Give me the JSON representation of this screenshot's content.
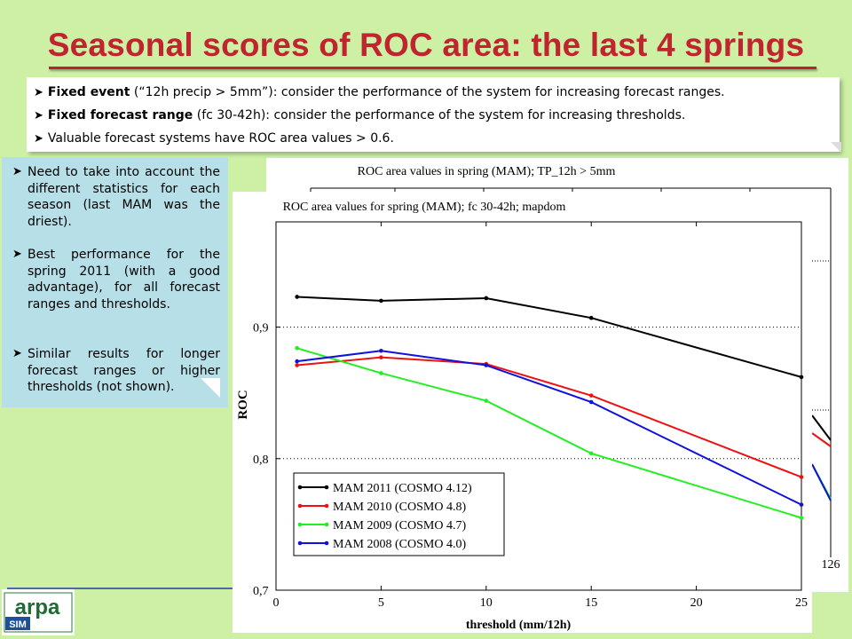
{
  "slide": {
    "title": "Seasonal scores of ROC area: the last 4 springs",
    "bullets_top": [
      {
        "bold": "Fixed event",
        "text": " (“12h precip > 5mm”): consider the performance of the system for increasing forecast ranges."
      },
      {
        "bold": "Fixed forecast range",
        "text": " (fc 30-42h): consider the performance of the system for increasing thresholds."
      },
      {
        "bold": "",
        "text": "Valuable forecast systems have ROC area values > 0.6."
      }
    ],
    "bullets_left": [
      "Need to take into account the different statistics for each season (last MAM was the driest).",
      "Best performance for the spring 2011 (with a good advantage), for all forecast ranges and thresholds.",
      "Similar results for longer forecast ranges or higher thresholds (not shown)."
    ],
    "logo_text": "arpa",
    "logo_subtext": "SIM"
  },
  "colors": {
    "background": "#cdf0a4",
    "title": "#c0252f",
    "left_box": "#b6dfe8",
    "series": [
      "#000000",
      "#ee1111",
      "#22ee22",
      "#1111dd"
    ]
  },
  "chart_data": [
    {
      "type": "line",
      "title": "ROC area values for spring (MAM); fc 30-42h; mapdom",
      "xlabel": "threshold (mm/12h)",
      "ylabel": "ROC",
      "xlim": [
        0,
        25
      ],
      "ylim": [
        0.7,
        0.98
      ],
      "x_ticks": [
        "0",
        "5",
        "10",
        "15",
        "20",
        "25"
      ],
      "y_ticks": [
        "0,7",
        "0,8",
        "0,9"
      ],
      "y_tick_values": [
        0.7,
        0.8,
        0.9
      ],
      "grid": "dotted horizontal at y ticks",
      "legend_position": "bottom-left",
      "x": [
        1,
        5,
        10,
        15,
        25
      ],
      "series": [
        {
          "name": "MAM 2011 (COSMO 4.12)",
          "values": [
            0.923,
            0.92,
            0.922,
            0.907,
            0.862
          ]
        },
        {
          "name": "MAM 2010 (COSMO 4.8)",
          "values": [
            0.871,
            0.877,
            0.872,
            0.848,
            0.786
          ]
        },
        {
          "name": "MAM 2009 (COSMO 4.7)",
          "values": [
            0.884,
            0.865,
            0.844,
            0.804,
            0.755
          ]
        },
        {
          "name": "MAM 2008 (COSMO 4.0)",
          "values": [
            0.874,
            0.882,
            0.871,
            0.843,
            0.765
          ]
        }
      ]
    },
    {
      "type": "line",
      "title": "ROC area values in spring (MAM); TP_12h > 5mm",
      "partially_hidden": true,
      "x_ticks": [
        "126"
      ]
    }
  ]
}
